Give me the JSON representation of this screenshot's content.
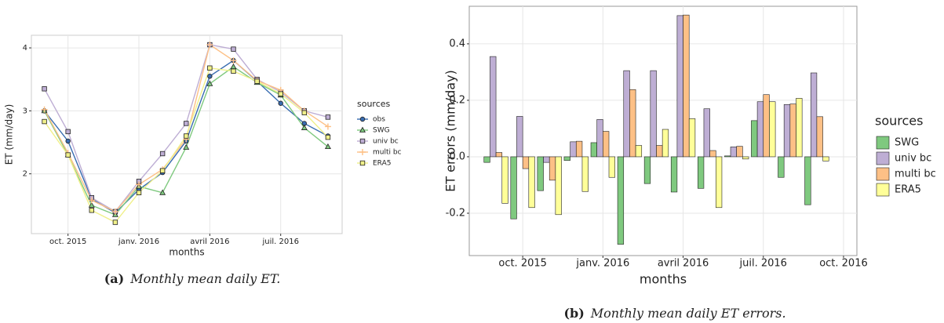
{
  "chart_data": [
    {
      "type": "line",
      "x_label": "months",
      "y_label": "ET (mm/day)",
      "legend_title": "sources",
      "legend": "right",
      "grid": true,
      "x": [
        "2015-09",
        "2015-10",
        "2015-11",
        "2015-12",
        "2016-01",
        "2016-02",
        "2016-03",
        "2016-04",
        "2016-05",
        "2016-06",
        "2016-07",
        "2016-08",
        "2016-09"
      ],
      "xticks": [
        {
          "value": "2015-10",
          "label": "oct. 2015"
        },
        {
          "value": "2016-01",
          "label": "janv. 2016"
        },
        {
          "value": "2016-04",
          "label": "avril 2016"
        },
        {
          "value": "2016-07",
          "label": "juil. 2016"
        }
      ],
      "ylim": [
        1.05,
        4.2
      ],
      "yticks": [
        2,
        3,
        4
      ],
      "series": [
        {
          "name": "obs",
          "color": "#386cb0",
          "marker": "circle",
          "values": [
            3.0,
            2.52,
            1.6,
            1.38,
            1.75,
            2.02,
            2.52,
            3.55,
            3.8,
            3.47,
            3.12,
            2.8,
            2.6
          ]
        },
        {
          "name": "SWG",
          "color": "#7fc97f",
          "marker": "triangle",
          "values": [
            3.0,
            2.3,
            1.5,
            1.35,
            1.8,
            1.7,
            2.42,
            3.43,
            3.7,
            3.45,
            3.25,
            2.73,
            2.43
          ]
        },
        {
          "name": "univ bc",
          "color": "#beaed4",
          "marker": "square",
          "values": [
            3.35,
            2.67,
            1.62,
            1.4,
            1.88,
            2.32,
            2.8,
            4.05,
            3.98,
            3.5,
            3.3,
            3.0,
            2.9
          ]
        },
        {
          "name": "multi bc",
          "color": "#fdc086",
          "marker": "plus",
          "values": [
            3.02,
            2.33,
            1.58,
            1.4,
            1.83,
            2.07,
            2.55,
            4.05,
            3.8,
            3.48,
            3.33,
            3.0,
            2.75
          ]
        },
        {
          "name": "ERA5",
          "color": "#f0f08a",
          "marker": "square",
          "values": [
            2.83,
            2.3,
            1.42,
            1.23,
            1.7,
            2.05,
            2.6,
            3.68,
            3.63,
            3.47,
            3.27,
            2.97,
            2.58
          ]
        }
      ],
      "caption_label": "(a)",
      "caption": "Monthly mean daily ET."
    },
    {
      "type": "bar",
      "x_label": "months",
      "y_label": "ET errors (mm/day)",
      "legend_title": "sources",
      "legend": "right",
      "grid": true,
      "x": [
        "2015-09",
        "2015-10",
        "2015-11",
        "2015-12",
        "2016-01",
        "2016-02",
        "2016-03",
        "2016-04",
        "2016-05",
        "2016-06",
        "2016-07",
        "2016-08",
        "2016-09"
      ],
      "xticks": [
        {
          "value": "2015-10",
          "label": "oct. 2015"
        },
        {
          "value": "2016-01",
          "label": "janv. 2016"
        },
        {
          "value": "2016-04",
          "label": "avril 2016"
        },
        {
          "value": "2016-07",
          "label": "juil. 2016"
        },
        {
          "value": "2016-10",
          "label": "oct. 2016"
        }
      ],
      "ylim": [
        -0.35,
        0.533
      ],
      "yticks": [
        {
          "value": -0.2,
          "label": "-0.2"
        },
        {
          "value": 0,
          "label": "0.0"
        },
        {
          "value": 0.2,
          "label": "0.2"
        },
        {
          "value": 0.4,
          "label": "0.4"
        }
      ],
      "series": [
        {
          "name": "SWG",
          "color": "#7fc97f",
          "values": [
            -0.02,
            -0.22,
            -0.12,
            -0.013,
            0.05,
            -0.31,
            -0.095,
            -0.125,
            -0.112,
            0.003,
            0.128,
            -0.073,
            -0.17
          ]
        },
        {
          "name": "univ bc",
          "color": "#beaed4",
          "values": [
            0.355,
            0.143,
            -0.02,
            0.053,
            0.132,
            0.305,
            0.305,
            0.5,
            0.17,
            0.035,
            0.195,
            0.185,
            0.297
          ]
        },
        {
          "name": "multi bc",
          "color": "#fdc086",
          "values": [
            0.015,
            -0.042,
            -0.083,
            0.055,
            0.09,
            0.238,
            0.04,
            0.502,
            0.022,
            0.037,
            0.22,
            0.187,
            0.142
          ]
        },
        {
          "name": "ERA5",
          "color": "#ffff99",
          "values": [
            -0.165,
            -0.18,
            -0.205,
            -0.123,
            -0.073,
            0.04,
            0.097,
            0.135,
            -0.18,
            -0.008,
            0.195,
            0.207,
            -0.015
          ]
        }
      ],
      "caption_label": "(b)",
      "caption": "Monthly mean daily ET errors."
    }
  ]
}
